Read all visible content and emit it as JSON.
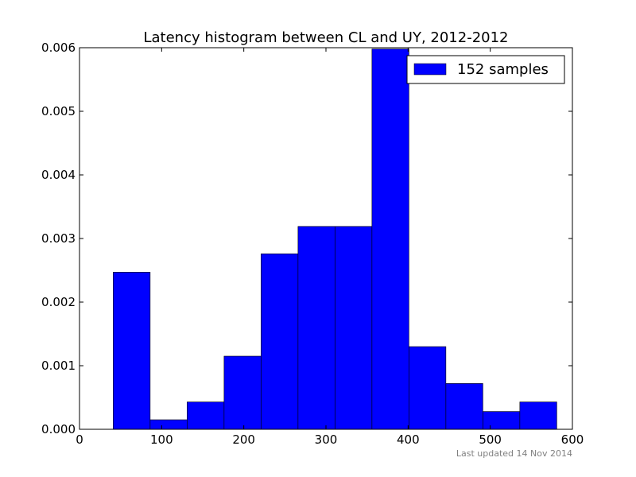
{
  "chart_data": {
    "type": "bar",
    "title": "Latency histogram between CL and UY, 2012-2012",
    "xlabel": "",
    "ylabel": "",
    "xlim": [
      0,
      600
    ],
    "ylim": [
      0,
      0.006
    ],
    "xticks": [
      "0",
      "100",
      "200",
      "300",
      "400",
      "500",
      "600"
    ],
    "yticks": [
      "0.000",
      "0.001",
      "0.002",
      "0.003",
      "0.004",
      "0.005",
      "0.006"
    ],
    "grid": false,
    "legend_position": "top-right",
    "series": [
      {
        "name": "152 samples",
        "color": "#0000ff",
        "bins": [
          {
            "x0": 41,
            "x1": 86,
            "value": 0.00247
          },
          {
            "x0": 86,
            "x1": 131,
            "value": 0.00015
          },
          {
            "x0": 131,
            "x1": 176,
            "value": 0.00043
          },
          {
            "x0": 176,
            "x1": 221,
            "value": 0.00115
          },
          {
            "x0": 221,
            "x1": 266,
            "value": 0.00276
          },
          {
            "x0": 266,
            "x1": 311,
            "value": 0.00319
          },
          {
            "x0": 311,
            "x1": 356,
            "value": 0.00319
          },
          {
            "x0": 356,
            "x1": 401,
            "value": 0.00598
          },
          {
            "x0": 401,
            "x1": 446,
            "value": 0.0013
          },
          {
            "x0": 446,
            "x1": 491,
            "value": 0.00072
          },
          {
            "x0": 491,
            "x1": 536,
            "value": 0.00028
          },
          {
            "x0": 536,
            "x1": 581,
            "value": 0.00043
          }
        ]
      }
    ]
  },
  "footer": {
    "updated_text": "Last updated 14 Nov 2014",
    "color": "#808080"
  }
}
